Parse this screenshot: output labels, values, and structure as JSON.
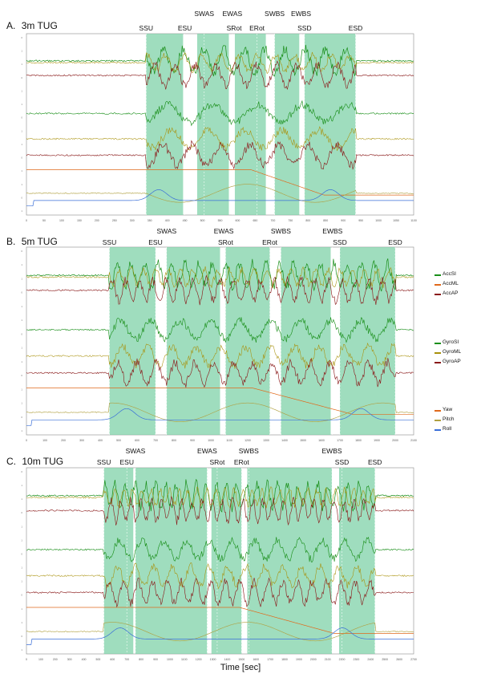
{
  "colors": {
    "phase_fill": "#7fd1a8",
    "AccSI": "#1a8f1a",
    "AccML": "#a8900a",
    "AccAP": "#8a1a1a",
    "GyroSI": "#1a8f1a",
    "GyroML": "#a8900a",
    "GyroAP": "#8a1a1a",
    "Yaw": "#e06a1c",
    "Pitch": "#b0a040",
    "Roll": "#3a6fd8"
  },
  "legend": {
    "acc": [
      "AccSI",
      "AccML",
      "AccAP"
    ],
    "gyro": [
      "GyroSI",
      "GyroML",
      "GyroAP"
    ],
    "orient": [
      "Yaw",
      "Pitch",
      "Roll"
    ]
  },
  "x_axis_label": "Time [sec]",
  "chart_data": [
    {
      "type": "line",
      "title": "3m TUG",
      "panel_letter": "A.",
      "xlim": [
        0,
        1100
      ],
      "xticks": [
        "0",
        "50",
        "100",
        "150",
        "200",
        "250",
        "300",
        "350",
        "400",
        "450",
        "500",
        "550",
        "600",
        "650",
        "700",
        "750",
        "800",
        "850",
        "900",
        "950",
        "1000",
        "1050",
        "1100"
      ],
      "phase_labels": [
        {
          "label": "SSU",
          "x": 340
        },
        {
          "label": "ESU",
          "x": 450
        },
        {
          "label": "SWAS",
          "x": 505
        },
        {
          "label": "EWAS",
          "x": 585
        },
        {
          "label": "SRot",
          "x": 590
        },
        {
          "label": "ERot",
          "x": 655
        },
        {
          "label": "SWBS",
          "x": 705
        },
        {
          "label": "EWBS",
          "x": 780
        },
        {
          "label": "SSD",
          "x": 790
        },
        {
          "label": "ESD",
          "x": 935
        }
      ],
      "shaded_intervals": [
        [
          340,
          445
        ],
        [
          485,
          575
        ],
        [
          592,
          680
        ],
        [
          705,
          775
        ],
        [
          790,
          935
        ]
      ],
      "series": [
        "AccSI",
        "AccML",
        "AccAP",
        "GyroSI",
        "GyroML",
        "GyroAP",
        "Yaw",
        "Pitch",
        "Roll"
      ]
    },
    {
      "type": "line",
      "title": "5m TUG",
      "panel_letter": "B.",
      "xlim": [
        0,
        2100
      ],
      "xticks": [
        "0",
        "100",
        "200",
        "300",
        "400",
        "500",
        "600",
        "700",
        "800",
        "900",
        "1000",
        "1100",
        "1200",
        "1300",
        "1400",
        "1500",
        "1600",
        "1700",
        "1800",
        "1900",
        "2000",
        "2100"
      ],
      "phase_labels": [
        {
          "label": "SSU",
          "x": 450
        },
        {
          "label": "SWAS",
          "x": 760
        },
        {
          "label": "ESU",
          "x": 700
        },
        {
          "label": "EWAS",
          "x": 1070
        },
        {
          "label": "SRot",
          "x": 1080
        },
        {
          "label": "ERot",
          "x": 1320
        },
        {
          "label": "SWBS",
          "x": 1380
        },
        {
          "label": "EWBS",
          "x": 1660
        },
        {
          "label": "SSD",
          "x": 1700
        },
        {
          "label": "ESD",
          "x": 2000
        }
      ],
      "shaded_intervals": [
        [
          450,
          700
        ],
        [
          760,
          1050
        ],
        [
          1080,
          1320
        ],
        [
          1380,
          1650
        ],
        [
          1700,
          2000
        ]
      ],
      "series": [
        "AccSI",
        "AccML",
        "AccAP",
        "GyroSI",
        "GyroML",
        "GyroAP",
        "Yaw",
        "Pitch",
        "Roll"
      ]
    },
    {
      "type": "line",
      "title": "10m TUG",
      "panel_letter": "C.",
      "xlim": [
        0,
        2700
      ],
      "xticks": [
        "0",
        "100",
        "200",
        "300",
        "400",
        "500",
        "600",
        "700",
        "800",
        "900",
        "1000",
        "1100",
        "1200",
        "1300",
        "1400",
        "1500",
        "1600",
        "1700",
        "1800",
        "1900",
        "2000",
        "2100",
        "2200",
        "2300",
        "2400",
        "2500",
        "2600",
        "2700"
      ],
      "phase_labels": [
        {
          "label": "SSU",
          "x": 540
        },
        {
          "label": "ESU",
          "x": 700
        },
        {
          "label": "SWAS",
          "x": 760
        },
        {
          "label": "EWAS",
          "x": 1260
        },
        {
          "label": "SRot",
          "x": 1330
        },
        {
          "label": "ERot",
          "x": 1500
        },
        {
          "label": "SWBS",
          "x": 1550
        },
        {
          "label": "EWBS",
          "x": 2130
        },
        {
          "label": "SSD",
          "x": 2200
        },
        {
          "label": "ESD",
          "x": 2430
        }
      ],
      "shaded_intervals": [
        [
          540,
          745
        ],
        [
          760,
          1260
        ],
        [
          1290,
          1500
        ],
        [
          1540,
          2130
        ],
        [
          2180,
          2430
        ]
      ],
      "series": [
        "AccSI",
        "AccML",
        "AccAP",
        "GyroSI",
        "GyroML",
        "GyroAP",
        "Yaw",
        "Pitch",
        "Roll"
      ]
    }
  ]
}
